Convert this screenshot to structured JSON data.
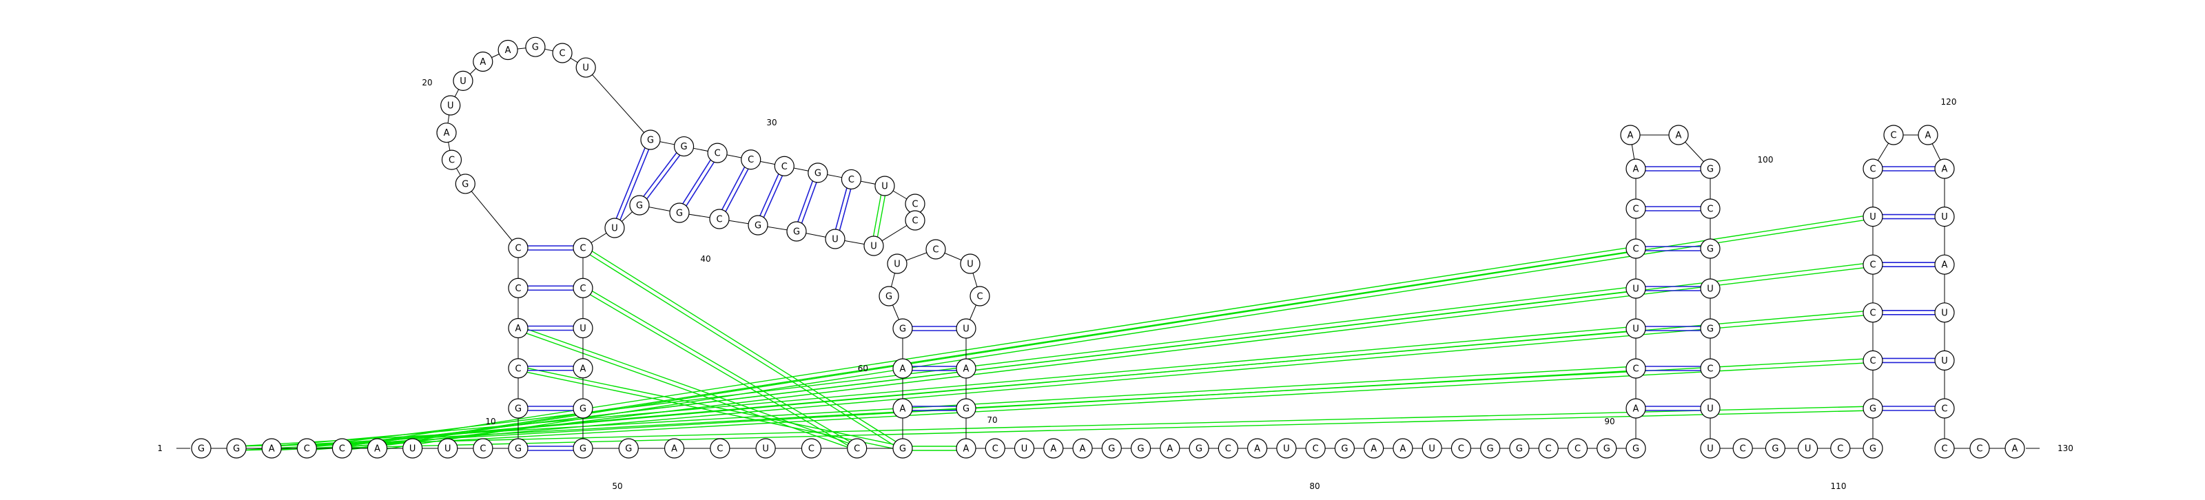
{
  "diagram": {
    "colors": {
      "backbone": "#000000",
      "canonical_pair": "#1f1fd6",
      "tertiary_pair": "#00e000",
      "nucleotide_fill": "#ffffff",
      "nucleotide_stroke": "#000000"
    },
    "sequence": [
      "G",
      "G",
      "A",
      "C",
      "C",
      "A",
      "U",
      "U",
      "C",
      "G",
      "G",
      "C",
      "A",
      "C",
      "C",
      "G",
      "C",
      "A",
      "U",
      "U",
      "A",
      "A",
      "G",
      "C",
      "U",
      "G",
      "G",
      "C",
      "C",
      "C",
      "G",
      "C",
      "U",
      "C",
      "C",
      "U",
      "U",
      "G",
      "G",
      "C",
      "G",
      "G",
      "U",
      "C",
      "C",
      "U",
      "A",
      "G",
      "G",
      "G",
      "A",
      "C",
      "U",
      "C",
      "C",
      "G",
      "A",
      "A",
      "G",
      "G",
      "U",
      "C",
      "U",
      "C",
      "U",
      "A",
      "G",
      "A",
      "C",
      "U",
      "A",
      "A",
      "G",
      "G",
      "A",
      "G",
      "C",
      "A",
      "U",
      "C",
      "G",
      "A",
      "A",
      "U",
      "C",
      "G",
      "G",
      "C",
      "C",
      "G",
      "G",
      "A",
      "C",
      "U",
      "U",
      "C",
      "C",
      "A",
      "A",
      "A",
      "G",
      "C",
      "G",
      "U",
      "G",
      "C",
      "U",
      "U",
      "C",
      "G",
      "U",
      "C",
      "G",
      "G",
      "C",
      "C",
      "C",
      "U",
      "C",
      "C",
      "A",
      "A",
      "U",
      "A",
      "U",
      "U",
      "C",
      "C",
      "C",
      "A"
    ],
    "position_labels": [
      {
        "index": 1,
        "text": "1"
      },
      {
        "index": 10,
        "text": "10"
      },
      {
        "index": 20,
        "text": "20"
      },
      {
        "index": 30,
        "text": "30"
      },
      {
        "index": 40,
        "text": "40"
      },
      {
        "index": 50,
        "text": "50"
      },
      {
        "index": 60,
        "text": "60"
      },
      {
        "index": 70,
        "text": "70"
      },
      {
        "index": 80,
        "text": "80"
      },
      {
        "index": 90,
        "text": "90"
      },
      {
        "index": 100,
        "text": "100"
      },
      {
        "index": 110,
        "text": "110"
      },
      {
        "index": 120,
        "text": "120"
      },
      {
        "index": 130,
        "text": "130"
      }
    ]
  }
}
